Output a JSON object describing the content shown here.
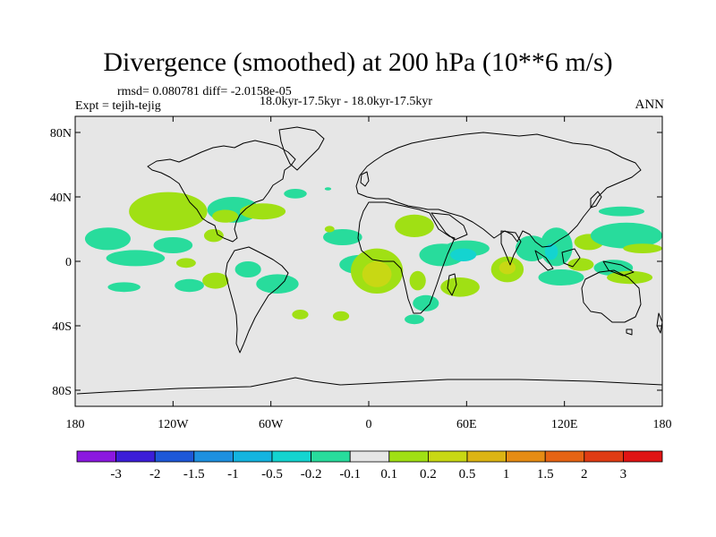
{
  "chart_data": {
    "type": "heatmap",
    "title": "Divergence (smoothed) at 200 hPa (10**6 m/s)",
    "subtitle_stats": "rmsd= 0.080781 diff= -2.0158e-05",
    "subtitle_experiment": "Expt = tejih-tejig",
    "subtitle_period": "18.0kyr-17.5kyr - 18.0kyr-17.5kyr",
    "season": "ANN",
    "xlim": [
      -180,
      180
    ],
    "ylim": [
      -90,
      90
    ],
    "x_ticks": [
      -180,
      -120,
      -60,
      0,
      60,
      120,
      180
    ],
    "x_tick_labels": [
      "180",
      "120W",
      "60W",
      "0",
      "60E",
      "120E",
      "180"
    ],
    "y_ticks": [
      80,
      40,
      0,
      -40,
      -80
    ],
    "y_tick_labels": [
      "80N",
      "40N",
      "0",
      "40S",
      "80S"
    ],
    "colorbar": {
      "labels": [
        "-3",
        "-2",
        "-1.5",
        "-1",
        "-0.5",
        "-0.2",
        "-0.1",
        "0.1",
        "0.2",
        "0.5",
        "1",
        "1.5",
        "2",
        "3"
      ],
      "colors": [
        "#8b18e0",
        "#3c1ed8",
        "#1e58d8",
        "#1e90e0",
        "#14b4e0",
        "#14d4d0",
        "#28dc9c",
        "#e6e6e6",
        "#a0e014",
        "#c8d814",
        "#dcb414",
        "#e68c14",
        "#e66414",
        "#e03c14",
        "#e01414"
      ]
    },
    "regions": [
      {
        "lon": -160,
        "lat": 14,
        "rlon": 14,
        "rlat": 7,
        "level": 0.1,
        "color": "#28dc9c"
      },
      {
        "lon": -123,
        "lat": 31,
        "rlon": 24,
        "rlat": 12,
        "level": 0.2,
        "color": "#a0e014"
      },
      {
        "lon": -143,
        "lat": 2,
        "rlon": 18,
        "rlat": 5,
        "level": 0.1,
        "color": "#28dc9c"
      },
      {
        "lon": -120,
        "lat": 10,
        "rlon": 12,
        "rlat": 5,
        "level": 0.1,
        "color": "#28dc9c"
      },
      {
        "lon": -150,
        "lat": -16,
        "rlon": 10,
        "rlat": 3,
        "level": 0.1,
        "color": "#28dc9c"
      },
      {
        "lon": -110,
        "lat": -15,
        "rlon": 9,
        "rlat": 4,
        "level": 0.1,
        "color": "#28dc9c"
      },
      {
        "lon": -112,
        "lat": -1,
        "rlon": 6,
        "rlat": 3,
        "level": 0.2,
        "color": "#a0e014"
      },
      {
        "lon": -95,
        "lat": 16,
        "rlon": 6,
        "rlat": 4,
        "level": 0.2,
        "color": "#a0e014"
      },
      {
        "lon": -83,
        "lat": 32,
        "rlon": 16,
        "rlat": 8,
        "level": 0.1,
        "color": "#28dc9c"
      },
      {
        "lon": -88,
        "lat": 28,
        "rlon": 8,
        "rlat": 4,
        "level": 0.2,
        "color": "#a0e014"
      },
      {
        "lon": -65,
        "lat": 31,
        "rlon": 14,
        "rlat": 5,
        "level": 0.2,
        "color": "#a0e014"
      },
      {
        "lon": -45,
        "lat": 42,
        "rlon": 7,
        "rlat": 3,
        "level": 0.1,
        "color": "#28dc9c"
      },
      {
        "lon": -94,
        "lat": -12,
        "rlon": 8,
        "rlat": 5,
        "level": 0.2,
        "color": "#a0e014"
      },
      {
        "lon": -74,
        "lat": -5,
        "rlon": 8,
        "rlat": 5,
        "level": 0.1,
        "color": "#28dc9c"
      },
      {
        "lon": -56,
        "lat": -14,
        "rlon": 13,
        "rlat": 6,
        "level": 0.1,
        "color": "#28dc9c"
      },
      {
        "lon": -42,
        "lat": -33,
        "rlon": 5,
        "rlat": 3,
        "level": 0.2,
        "color": "#a0e014"
      },
      {
        "lon": -16,
        "lat": 15,
        "rlon": 12,
        "rlat": 5,
        "level": 0.1,
        "color": "#28dc9c"
      },
      {
        "lon": -24,
        "lat": 20,
        "rlon": 3,
        "rlat": 2,
        "level": 0.2,
        "color": "#a0e014"
      },
      {
        "lon": -5,
        "lat": -2,
        "rlon": 13,
        "rlat": 6,
        "level": 0.1,
        "color": "#28dc9c"
      },
      {
        "lon": 5,
        "lat": -6,
        "rlon": 16,
        "rlat": 14,
        "level": 0.2,
        "color": "#a0e014"
      },
      {
        "lon": 5,
        "lat": -8,
        "rlon": 9,
        "rlat": 8,
        "level": 0.5,
        "color": "#c8d814"
      },
      {
        "lon": 28,
        "lat": 22,
        "rlon": 12,
        "rlat": 7,
        "level": 0.2,
        "color": "#a0e014"
      },
      {
        "lon": 30,
        "lat": -12,
        "rlon": 5,
        "rlat": 6,
        "level": 0.2,
        "color": "#a0e014"
      },
      {
        "lon": 45,
        "lat": 4,
        "rlon": 14,
        "rlat": 7,
        "level": 0.1,
        "color": "#28dc9c"
      },
      {
        "lon": 60,
        "lat": 8,
        "rlon": 14,
        "rlat": 5,
        "level": 0.1,
        "color": "#28dc9c"
      },
      {
        "lon": 58,
        "lat": 4,
        "rlon": 8,
        "rlat": 4,
        "level": -0.1,
        "color": "#14d4d0"
      },
      {
        "lon": 56,
        "lat": -16,
        "rlon": 12,
        "rlat": 6,
        "level": 0.2,
        "color": "#a0e014"
      },
      {
        "lon": 35,
        "lat": -26,
        "rlon": 8,
        "rlat": 5,
        "level": 0.1,
        "color": "#28dc9c"
      },
      {
        "lon": 28,
        "lat": -36,
        "rlon": 6,
        "rlat": 3,
        "level": 0.1,
        "color": "#28dc9c"
      },
      {
        "lon": -17,
        "lat": -34,
        "rlon": 5,
        "rlat": 3,
        "level": 0.2,
        "color": "#a0e014"
      },
      {
        "lon": 85,
        "lat": -5,
        "rlon": 10,
        "rlat": 8,
        "level": 0.2,
        "color": "#a0e014"
      },
      {
        "lon": 85,
        "lat": -4,
        "rlon": 5,
        "rlat": 4,
        "level": 0.5,
        "color": "#c8d814"
      },
      {
        "lon": 100,
        "lat": 8,
        "rlon": 10,
        "rlat": 8,
        "level": 0.1,
        "color": "#28dc9c"
      },
      {
        "lon": 115,
        "lat": 9,
        "rlon": 10,
        "rlat": 12,
        "level": 0.1,
        "color": "#28dc9c"
      },
      {
        "lon": 112,
        "lat": 6,
        "rlon": 4,
        "rlat": 5,
        "level": -0.1,
        "color": "#14d4d0"
      },
      {
        "lon": 118,
        "lat": -10,
        "rlon": 14,
        "rlat": 5,
        "level": 0.1,
        "color": "#28dc9c"
      },
      {
        "lon": 135,
        "lat": 12,
        "rlon": 9,
        "rlat": 5,
        "level": 0.2,
        "color": "#a0e014"
      },
      {
        "lon": 158,
        "lat": 16,
        "rlon": 22,
        "rlat": 8,
        "level": 0.1,
        "color": "#28dc9c"
      },
      {
        "lon": 130,
        "lat": -2,
        "rlon": 8,
        "rlat": 4,
        "level": 0.2,
        "color": "#a0e014"
      },
      {
        "lon": 150,
        "lat": -4,
        "rlon": 12,
        "rlat": 5,
        "level": 0.1,
        "color": "#28dc9c"
      },
      {
        "lon": 168,
        "lat": 8,
        "rlon": 12,
        "rlat": 3,
        "level": 0.2,
        "color": "#a0e014"
      },
      {
        "lon": 160,
        "lat": -10,
        "rlon": 14,
        "rlat": 4,
        "level": 0.2,
        "color": "#a0e014"
      },
      {
        "lon": 155,
        "lat": 31,
        "rlon": 14,
        "rlat": 3,
        "level": 0.1,
        "color": "#28dc9c"
      },
      {
        "lon": -25,
        "lat": 45,
        "rlon": 2,
        "rlat": 1,
        "level": 0.1,
        "color": "#28dc9c"
      }
    ]
  }
}
